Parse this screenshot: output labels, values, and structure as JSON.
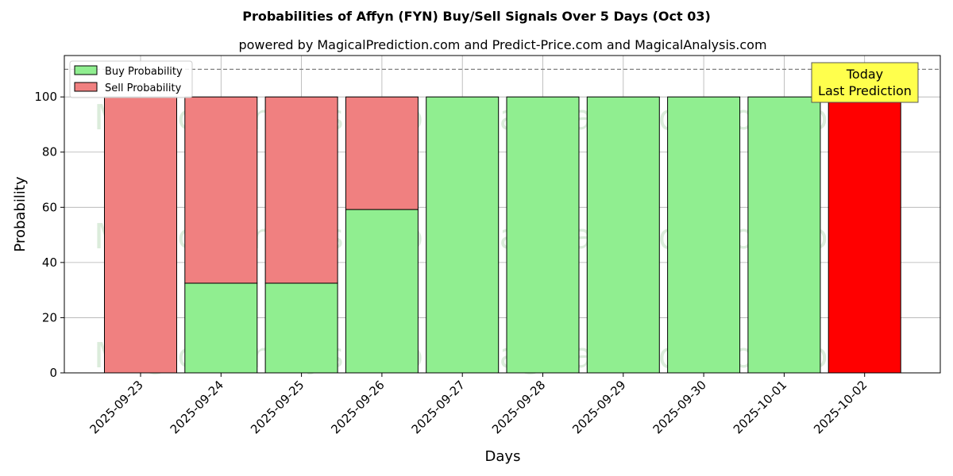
{
  "chart_data": {
    "type": "bar",
    "title": "Probabilities of Affyn (FYN) Buy/Sell Signals Over 5 Days (Oct 03)",
    "subtitle": "powered by MagicalPrediction.com and Predict-Price.com and MagicalAnalysis.com",
    "xlabel": "Days",
    "ylabel": "Probability",
    "ylim": [
      0,
      115
    ],
    "yticks": [
      0,
      20,
      40,
      60,
      80,
      100
    ],
    "reference_line": 110,
    "grid": true,
    "legend_position": "top-left",
    "categories": [
      "2025-09-23",
      "2025-09-24",
      "2025-09-25",
      "2025-09-26",
      "2025-09-27",
      "2025-09-28",
      "2025-09-29",
      "2025-09-30",
      "2025-10-01",
      "2025-10-02"
    ],
    "series": [
      {
        "name": "Buy Probability",
        "color": "#90ee90",
        "values": [
          0,
          32.5,
          32.5,
          59.2,
          100,
          100,
          100,
          100,
          100,
          0
        ]
      },
      {
        "name": "Sell Probability",
        "color": "#f08080",
        "values": [
          100,
          67.5,
          67.5,
          40.8,
          0,
          0,
          0,
          0,
          0,
          100
        ]
      }
    ],
    "highlight": {
      "category": "2025-10-02",
      "color": "#ff0000"
    },
    "annotation": {
      "line1": "Today",
      "line2": "Last Prediction"
    },
    "watermarks": [
      "MagicalAnalysis.com",
      "MagicalPrediction.com"
    ]
  }
}
